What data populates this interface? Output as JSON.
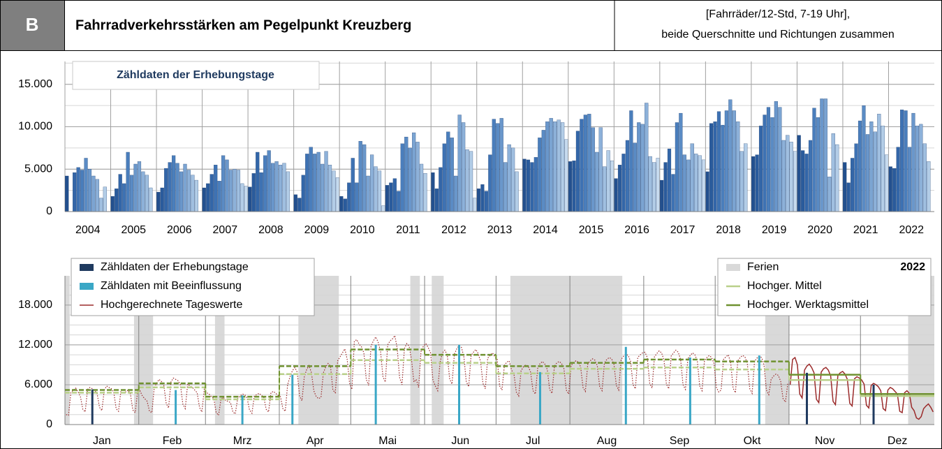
{
  "header": {
    "badge": "B",
    "title": "Fahrradverkehrsstärken am Pegelpunkt Kreuzberg",
    "note": [
      "[Fahrräder/12-Std, 7-19 Uhr],",
      "beide Querschnitte und Richtungen zusammen"
    ]
  },
  "chart_data": [
    {
      "type": "bar",
      "annotation": "Zähldaten der Erhebungstage",
      "categories": [
        "2004",
        "2005",
        "2006",
        "2007",
        "2008",
        "2009",
        "2010",
        "2011",
        "2012",
        "2013",
        "2014",
        "2015",
        "2016",
        "2017",
        "2018",
        "2019",
        "2020",
        "2021",
        "2022"
      ],
      "bar_colors": [
        "#23508e",
        "#2a5b9c",
        "#3366a8",
        "#3e72b3",
        "#4a7ebc",
        "#5a8bc4",
        "#6a97cb",
        "#7ba4d2",
        "#8db1d9",
        "#a0bfe0",
        "#b3cde7",
        "#c6daee"
      ],
      "values": [
        [
          4200,
          null,
          4600,
          5200,
          4900,
          6300,
          5000,
          4200,
          3800,
          1600,
          2900,
          null
        ],
        [
          1800,
          2700,
          4400,
          3300,
          7000,
          4300,
          5600,
          5900,
          4700,
          4300,
          2800,
          null
        ],
        [
          2300,
          2800,
          5100,
          5800,
          6600,
          5700,
          4700,
          5600,
          4900,
          4300,
          3700,
          null
        ],
        [
          2800,
          3300,
          4400,
          5500,
          3600,
          6600,
          6100,
          4900,
          5000,
          4900,
          3300,
          3000
        ],
        [
          2900,
          4500,
          7000,
          4600,
          6600,
          7200,
          5700,
          5900,
          5500,
          5700,
          4700,
          null
        ],
        [
          2000,
          1600,
          4300,
          6800,
          7600,
          6800,
          7000,
          5600,
          7100,
          5500,
          4800,
          4000
        ],
        [
          1800,
          1500,
          3400,
          6300,
          3400,
          8300,
          7900,
          4200,
          6700,
          5300,
          4800,
          700
        ],
        [
          3100,
          3400,
          3900,
          2400,
          8000,
          8800,
          7500,
          9300,
          8200,
          5600,
          4500,
          null
        ],
        [
          4600,
          2700,
          5200,
          8000,
          9400,
          8700,
          4200,
          11400,
          10500,
          7300,
          7100,
          1600
        ],
        [
          2700,
          3200,
          2400,
          6700,
          10900,
          10400,
          11000,
          5800,
          7900,
          7500,
          4700,
          null
        ],
        [
          6200,
          6100,
          5800,
          6400,
          8700,
          9600,
          10600,
          11000,
          10600,
          10800,
          10500,
          8500
        ],
        [
          5900,
          6000,
          9500,
          10900,
          11400,
          11500,
          9900,
          7000,
          9900,
          5300,
          7200,
          6000
        ],
        [
          3900,
          5500,
          6800,
          8400,
          11900,
          8100,
          10500,
          10300,
          12800,
          6500,
          5800,
          6300
        ],
        [
          3700,
          5800,
          7400,
          4400,
          10500,
          11600,
          6700,
          6100,
          8000,
          6800,
          6600,
          6100
        ],
        [
          4700,
          10400,
          10600,
          11800,
          10200,
          11900,
          13200,
          11900,
          10600,
          7100,
          8000,
          null
        ],
        [
          6500,
          6700,
          10100,
          11400,
          12300,
          11100,
          13000,
          12300,
          8400,
          9000,
          8200,
          7100
        ],
        [
          9000,
          7200,
          6800,
          8400,
          12200,
          11100,
          13300,
          13300,
          4100,
          9200,
          7900,
          null
        ],
        [
          5800,
          3400,
          6300,
          8000,
          10700,
          12500,
          9100,
          10600,
          9400,
          11500,
          10100,
          6700
        ],
        [
          5300,
          5100,
          7600,
          12000,
          11900,
          7600,
          11600,
          10100,
          10300,
          8000,
          5900,
          null
        ]
      ],
      "ylim": [
        0,
        17700
      ],
      "yticks": [
        0,
        {
          "value": 5000,
          "label": "5.000"
        },
        {
          "value": 10000,
          "label": "10.000"
        },
        {
          "value": 15000,
          "label": "15.000"
        }
      ],
      "minor_grid_step": 2500,
      "grid": true
    },
    {
      "type": "line",
      "year_label": "2022",
      "categories": [
        "Jan",
        "Feb",
        "Mrz",
        "Apr",
        "Mai",
        "Jun",
        "Jul",
        "Aug",
        "Sep",
        "Okt",
        "Nov",
        "Dez"
      ],
      "ylim": [
        0,
        22400
      ],
      "yticks": [
        0,
        {
          "value": 6000,
          "label": "6.000"
        },
        {
          "value": 12000,
          "label": "12.000"
        },
        {
          "value": 18000,
          "label": "18.000"
        }
      ],
      "minor_grid_step": 1500,
      "grid": true,
      "series": [
        {
          "name": "Zähldaten der Erhebungstage",
          "kind": "stick",
          "color": "#1f3a5f",
          "x": [
            12,
            312,
            340
          ],
          "values": [
            5300,
            7800,
            6000
          ]
        },
        {
          "name": "Zähldaten mit Beeinflussung",
          "kind": "stick",
          "color": "#3aa7c6",
          "x": [
            47,
            75,
            96,
            131,
            166,
            200,
            236,
            263,
            292
          ],
          "values": [
            5200,
            4400,
            7500,
            12000,
            12000,
            7900,
            11700,
            10100,
            10400
          ]
        },
        {
          "name": "Hochgerechnete Tageswerte",
          "kind": "daily",
          "color": "#9b2b2b",
          "style": [
            "dotted",
            "dotted",
            "dotted",
            "dotted",
            "dotted",
            "dotted",
            "dotted",
            "dotted",
            "dotted",
            "dotted",
            "solid",
            "solid"
          ],
          "values": [
            [
              1500,
              1400,
              4800,
              5200,
              5500,
              4900,
              4200,
              2300,
              1900,
              5300,
              5600,
              5400,
              5100,
              4700,
              2600,
              2100,
              5200,
              5800,
              5600,
              5400,
              4900,
              2400,
              2000,
              5100,
              5300,
              4900,
              5200,
              4600,
              2200,
              1800,
              4900
            ],
            [
              5100,
              4300,
              3900,
              3500,
              2000,
              1800,
              5600,
              6200,
              6800,
              6500,
              5900,
              3200,
              2500,
              6400,
              7000,
              6800,
              6600,
              6000,
              3100,
              2400,
              6100,
              5800,
              5600,
              5200,
              4800,
              2600,
              1900,
              5300
            ],
            [
              4800,
              4600,
              4200,
              3900,
              1800,
              1400,
              3800,
              4100,
              3600,
              3500,
              3300,
              1900,
              1600,
              3900,
              4300,
              4600,
              4500,
              4000,
              2200,
              1700,
              4300,
              4500,
              4700,
              4400,
              4100,
              2300,
              1900,
              4800,
              5000,
              4700,
              4400
            ],
            [
              4200,
              2400,
              2000,
              6000,
              7200,
              8100,
              8600,
              7900,
              4300,
              3600,
              7200,
              8300,
              8900,
              7800,
              5100,
              4200,
              3900,
              4100,
              7800,
              8700,
              9200,
              8800,
              5200,
              4800,
              9600,
              10200,
              10800,
              11400,
              9800,
              6200
            ],
            [
              5300,
              12500,
              12800,
              12100,
              11700,
              10800,
              6800,
              5900,
              11800,
              12600,
              13200,
              12400,
              11000,
              7200,
              6400,
              12000,
              12600,
              12900,
              13400,
              11500,
              7100,
              6000,
              11400,
              12200,
              11800,
              9800,
              6400,
              6800,
              5600,
              11000,
              11800
            ],
            [
              12200,
              11600,
              10800,
              6700,
              5800,
              5100,
              9400,
              10800,
              11200,
              10500,
              6900,
              6100,
              10600,
              11400,
              11900,
              11600,
              10200,
              6500,
              5700,
              10400,
              10900,
              11300,
              10700,
              9500,
              6200,
              5400,
              10000,
              10400,
              10800,
              10200
            ],
            [
              9800,
              5800,
              5200,
              8900,
              9400,
              9600,
              8200,
              7600,
              4900,
              4300,
              8100,
              8700,
              9000,
              8800,
              7900,
              5100,
              4600,
              8600,
              9200,
              9500,
              9100,
              8300,
              5300,
              4700,
              8800,
              9300,
              9500,
              9200,
              8400,
              5200,
              4600
            ],
            [
              8900,
              9300,
              9600,
              9400,
              8700,
              5600,
              5000,
              9100,
              9600,
              9900,
              9700,
              8900,
              5700,
              5100,
              9300,
              9800,
              10100,
              9900,
              9100,
              5900,
              5200,
              9800,
              10300,
              10600,
              10400,
              9500,
              6000,
              5400,
              10100,
              10500,
              10800
            ],
            [
              10900,
              10100,
              6200,
              5500,
              10200,
              10700,
              11100,
              10800,
              9700,
              6100,
              5400,
              10300,
              10800,
              11200,
              10900,
              9800,
              6000,
              5300,
              9900,
              10400,
              10800,
              10500,
              9600,
              5800,
              5100,
              9600,
              10100,
              10400,
              10100,
              9200
            ],
            [
              5600,
              4900,
              5200,
              9800,
              10200,
              10500,
              9300,
              5500,
              4800,
              9600,
              10100,
              10400,
              10200,
              9200,
              5400,
              4700,
              9500,
              10000,
              10300,
              10100,
              9000,
              5200,
              4500,
              6800,
              7300,
              7600,
              7400,
              6500,
              3900,
              3400,
              6200
            ],
            [
              6000,
              9800,
              10100,
              9000,
              4600,
              4000,
              8200,
              8800,
              9100,
              8600,
              7800,
              3800,
              3300,
              7900,
              8400,
              8600,
              8200,
              7300,
              3500,
              3000,
              7400,
              7800,
              8000,
              7600,
              6800,
              3200,
              2800,
              6900,
              7200,
              7000
            ],
            [
              6700,
              6100,
              2900,
              2500,
              5900,
              6200,
              6000,
              5700,
              5100,
              2400,
              2100,
              5200,
              5600,
              5400,
              5000,
              4600,
              2000,
              1800,
              4800,
              5100,
              4700,
              2600,
              2100,
              1000,
              800,
              1200,
              2400,
              2800,
              3100,
              2600,
              1900
            ]
          ]
        },
        {
          "name": "Ferien",
          "kind": "band",
          "color": "#d9d9d9",
          "ranges": [
            [
              1,
              2
            ],
            [
              30,
              37
            ],
            [
              64,
              67
            ],
            [
              99,
              115
            ],
            [
              146,
              149
            ],
            [
              155,
              159
            ],
            [
              188,
              234
            ],
            [
              295,
              304
            ],
            [
              355,
              365
            ]
          ]
        },
        {
          "name": "Hochger. Mittel",
          "kind": "step",
          "color": "#b9d08a",
          "style": [
            "dashed",
            "dashed",
            "dashed",
            "dashed",
            "dashed",
            "dashed",
            "dashed",
            "dashed",
            "dashed",
            "dashed",
            "solid",
            "solid"
          ],
          "values": [
            4800,
            5600,
            3800,
            7600,
            9700,
            9300,
            7700,
            8400,
            8600,
            8300,
            6700,
            4300
          ]
        },
        {
          "name": "Hochger. Werktagsmittel",
          "kind": "step",
          "color": "#6f9130",
          "style": [
            "dashed",
            "dashed",
            "dashed",
            "dashed",
            "dashed",
            "dashed",
            "dashed",
            "dashed",
            "dashed",
            "dashed",
            "solid",
            "solid"
          ],
          "values": [
            5200,
            6200,
            4200,
            8800,
            11300,
            10500,
            8800,
            9300,
            9800,
            9500,
            7500,
            4600
          ]
        }
      ]
    }
  ]
}
